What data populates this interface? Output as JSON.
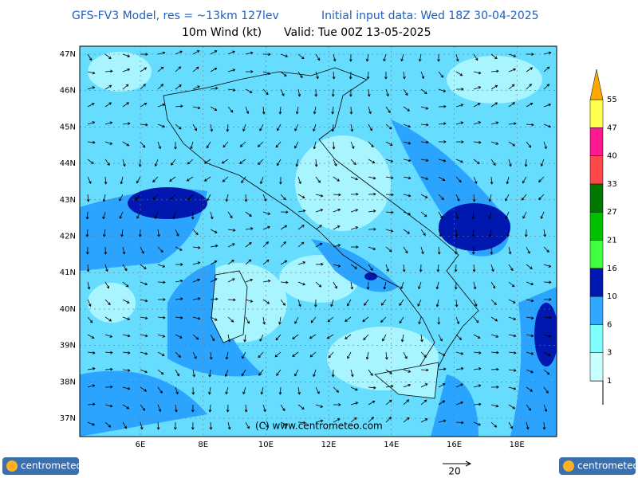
{
  "header": {
    "title": "GFS-FV3 Model, res = ~13km 127lev",
    "init": "Initial input data: Wed 18Z 30-04-2025",
    "subtitle": "10m Wind (kt)",
    "valid": "Valid: Tue 00Z 13-05-2025"
  },
  "map": {
    "lat_labels": [
      "47N",
      "46N",
      "45N",
      "44N",
      "43N",
      "42N",
      "41N",
      "40N",
      "39N",
      "38N",
      "37N"
    ],
    "lon_labels": [
      "6E",
      "8E",
      "10E",
      "12E",
      "14E",
      "16E",
      "18E"
    ],
    "copyright": "(C) www.centrometeo.com"
  },
  "legend": {
    "levels": [
      1,
      3,
      6,
      10,
      16,
      21,
      27,
      33,
      40,
      47,
      55
    ],
    "colors": [
      "#c8ffff",
      "#80ffff",
      "#30a8ff",
      "#0018b0",
      "#40ff40",
      "#00c000",
      "#007800",
      "#ff4848",
      "#ff1890",
      "#ffff50"
    ],
    "top_color": "#ffa800"
  },
  "wind_scale": {
    "label": "20"
  },
  "logos": {
    "left": "centrometeo",
    "right": "centrometeo"
  }
}
